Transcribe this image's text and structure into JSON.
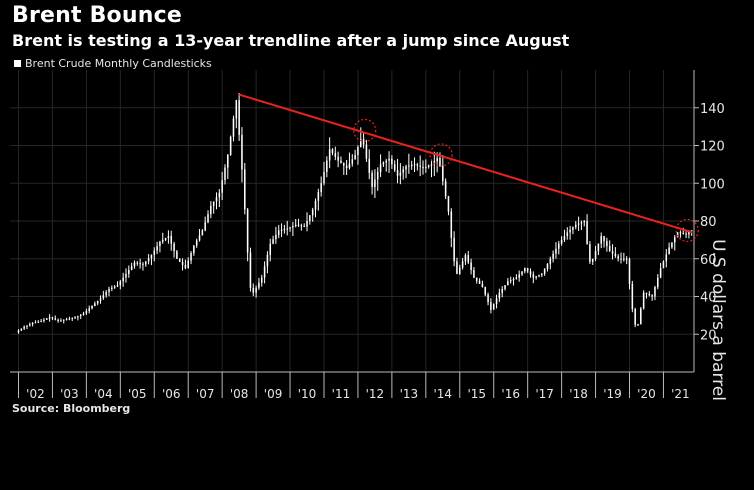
{
  "title": "Brent Bounce",
  "subtitle": "Brent is testing a 13-year trendline after a jump since August",
  "legend_label": "Brent Crude Monthly Candlesticks",
  "source": "Source: Bloomberg",
  "chart_data": {
    "type": "candlestick",
    "ylabel": "U.S dollars a barrel",
    "ylim": [
      0,
      160
    ],
    "yticks": [
      20,
      40,
      60,
      80,
      100,
      120,
      140
    ],
    "x_tick_labels": [
      "'02",
      "'03",
      "'04",
      "'05",
      "'06",
      "'07",
      "'08",
      "'09",
      "'10",
      "'11",
      "'12",
      "'13",
      "'14",
      "'15",
      "'16",
      "'17",
      "'18",
      "'19",
      "'20",
      "'21"
    ],
    "x_range": [
      2001.75,
      2021.9
    ],
    "series": [
      {
        "points": [
          [
            2002.0,
            21
          ],
          [
            2002.25,
            24
          ],
          [
            2002.5,
            26
          ],
          [
            2002.75,
            27
          ],
          [
            2003.0,
            29
          ],
          [
            2003.25,
            27
          ],
          [
            2003.5,
            28
          ],
          [
            2003.75,
            29
          ],
          [
            2004.0,
            31
          ],
          [
            2004.25,
            35
          ],
          [
            2004.5,
            39
          ],
          [
            2004.75,
            44
          ],
          [
            2005.0,
            46
          ],
          [
            2005.25,
            52
          ],
          [
            2005.5,
            58
          ],
          [
            2005.75,
            57
          ],
          [
            2006.0,
            62
          ],
          [
            2006.25,
            69
          ],
          [
            2006.5,
            72
          ],
          [
            2006.75,
            60
          ],
          [
            2007.0,
            55
          ],
          [
            2007.25,
            67
          ],
          [
            2007.5,
            75
          ],
          [
            2007.75,
            88
          ],
          [
            2008.0,
            95
          ],
          [
            2008.25,
            115
          ],
          [
            2008.5,
            144
          ],
          [
            2008.7,
            100
          ],
          [
            2008.9,
            45
          ],
          [
            2009.0,
            42
          ],
          [
            2009.25,
            50
          ],
          [
            2009.5,
            68
          ],
          [
            2009.75,
            75
          ],
          [
            2010.0,
            76
          ],
          [
            2010.25,
            78
          ],
          [
            2010.5,
            77
          ],
          [
            2010.75,
            86
          ],
          [
            2011.0,
            100
          ],
          [
            2011.25,
            118
          ],
          [
            2011.5,
            112
          ],
          [
            2011.75,
            108
          ],
          [
            2012.0,
            115
          ],
          [
            2012.2,
            125
          ],
          [
            2012.5,
            98
          ],
          [
            2012.75,
            110
          ],
          [
            2013.0,
            113
          ],
          [
            2013.25,
            104
          ],
          [
            2013.5,
            109
          ],
          [
            2013.75,
            110
          ],
          [
            2014.0,
            108
          ],
          [
            2014.25,
            110
          ],
          [
            2014.45,
            114
          ],
          [
            2014.75,
            85
          ],
          [
            2014.9,
            60
          ],
          [
            2015.0,
            52
          ],
          [
            2015.25,
            62
          ],
          [
            2015.5,
            50
          ],
          [
            2015.75,
            45
          ],
          [
            2016.0,
            33
          ],
          [
            2016.25,
            42
          ],
          [
            2016.5,
            48
          ],
          [
            2016.75,
            50
          ],
          [
            2017.0,
            55
          ],
          [
            2017.25,
            50
          ],
          [
            2017.5,
            52
          ],
          [
            2017.75,
            60
          ],
          [
            2018.0,
            68
          ],
          [
            2018.25,
            74
          ],
          [
            2018.5,
            78
          ],
          [
            2018.75,
            80
          ],
          [
            2018.9,
            58
          ],
          [
            2019.0,
            60
          ],
          [
            2019.25,
            72
          ],
          [
            2019.5,
            64
          ],
          [
            2019.75,
            60
          ],
          [
            2020.0,
            60
          ],
          [
            2020.2,
            28
          ],
          [
            2020.3,
            22
          ],
          [
            2020.5,
            42
          ],
          [
            2020.75,
            40
          ],
          [
            2021.0,
            55
          ],
          [
            2021.25,
            66
          ],
          [
            2021.5,
            74
          ],
          [
            2021.75,
            73
          ],
          [
            2021.85,
            75
          ]
        ]
      }
    ],
    "trendline": {
      "from": [
        2008.5,
        147
      ],
      "to": [
        2021.85,
        74
      ],
      "color": "#e8231e"
    },
    "circles": [
      [
        2012.2,
        128
      ],
      [
        2014.45,
        115
      ],
      [
        2021.7,
        75
      ]
    ],
    "colors": {
      "candle": "#ffffff",
      "trendline": "#e8231e",
      "circle": "#e8231e"
    }
  }
}
